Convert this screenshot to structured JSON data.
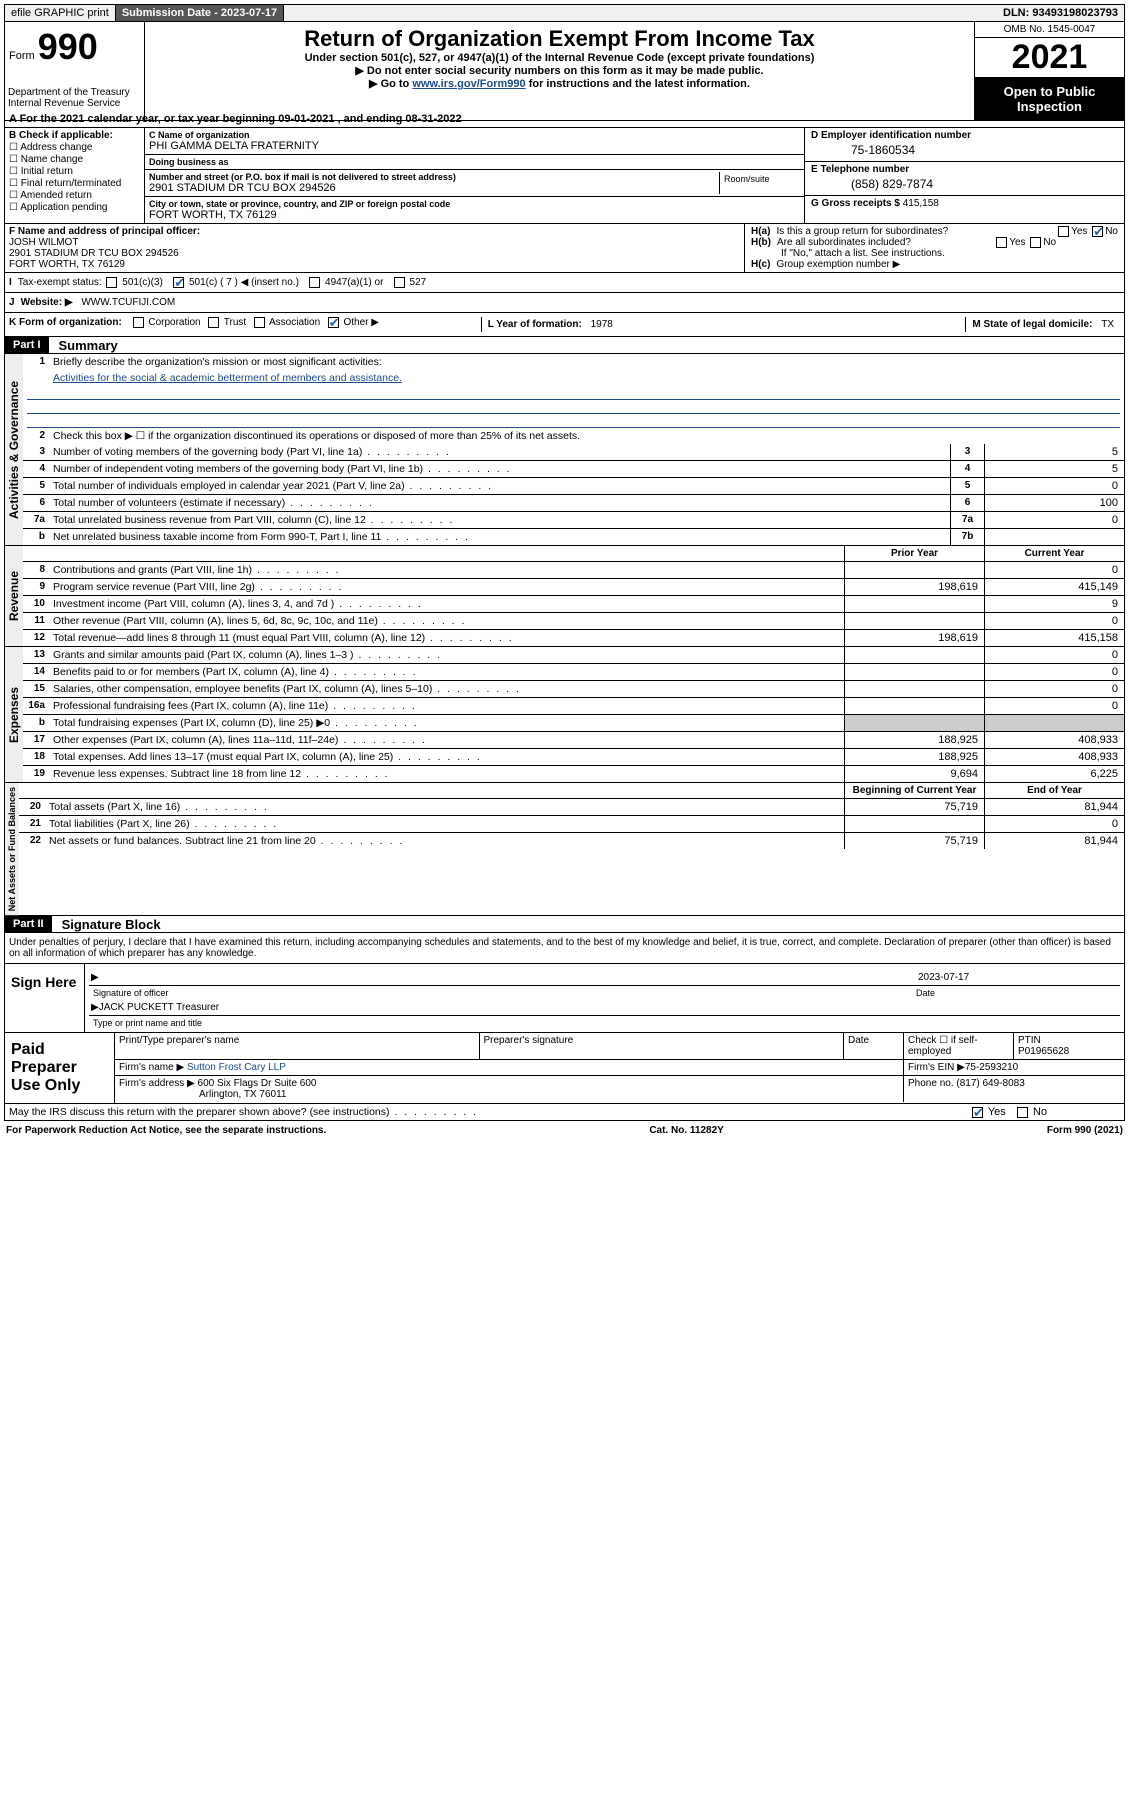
{
  "topbar": {
    "efile": "efile GRAPHIC print",
    "sub_label": "Submission Date - ",
    "sub_date": "2023-07-17",
    "dln_label": "DLN: ",
    "dln": "93493198023793"
  },
  "header": {
    "form_prefix": "Form",
    "form_no": "990",
    "dept": "Department of the Treasury\nInternal Revenue Service",
    "title": "Return of Organization Exempt From Income Tax",
    "sub1": "Under section 501(c), 527, or 4947(a)(1) of the Internal Revenue Code (except private foundations)",
    "sub2": "Do not enter social security numbers on this form as it may be made public.",
    "sub3_pre": "Go to ",
    "sub3_link": "www.irs.gov/Form990",
    "sub3_post": " for instructions and the latest information.",
    "omb": "OMB No. 1545-0047",
    "year": "2021",
    "inspection": "Open to Public Inspection"
  },
  "rowA": {
    "pre": "A For the 2021 calendar year, or tax year beginning ",
    "begin": "09-01-2021",
    "mid": " , and ending ",
    "end": "08-31-2022"
  },
  "colB": {
    "hdr": "B Check if applicable:",
    "items": [
      "Address change",
      "Name change",
      "Initial return",
      "Final return/terminated",
      "Amended return",
      "Application pending"
    ]
  },
  "colC": {
    "name_lbl": "C Name of organization",
    "name": "PHI GAMMA DELTA FRATERNITY",
    "dba_lbl": "Doing business as",
    "dba": "",
    "street_lbl": "Number and street (or P.O. box if mail is not delivered to street address)",
    "street": "2901 STADIUM DR TCU BOX 294526",
    "room_lbl": "Room/suite",
    "city_lbl": "City or town, state or province, country, and ZIP or foreign postal code",
    "city": "FORT WORTH, TX  76129"
  },
  "colD": {
    "ein_lbl": "D Employer identification number",
    "ein": "75-1860534",
    "tel_lbl": "E Telephone number",
    "tel": "(858) 829-7874",
    "gross_lbl": "G Gross receipts $ ",
    "gross": "415,158"
  },
  "colF": {
    "lbl": "F Name and address of principal officer:",
    "name": "JOSH WILMOT",
    "addr1": "2901 STADIUM DR TCU BOX 294526",
    "addr2": "FORT WORTH, TX  76129"
  },
  "colH": {
    "ha": "Is this a group return for subordinates?",
    "hb": "Are all subordinates included?",
    "hb_note": "If \"No,\" attach a list. See instructions.",
    "hc": "Group exemption number ▶",
    "Ha_l": "H(a)",
    "Hb_l": "H(b)",
    "Hc_l": "H(c)"
  },
  "rowI": {
    "lbl": "Tax-exempt status:",
    "opt1": "501(c)(3)",
    "opt2": "501(c) ( 7 ) ◀ (insert no.)",
    "opt3": "4947(a)(1) or",
    "opt4": "527"
  },
  "rowJ": {
    "lbl": "Website: ▶",
    "val": "WWW.TCUFIJI.COM"
  },
  "rowK": {
    "lbl": "K Form of organization:",
    "opts": [
      "Corporation",
      "Trust",
      "Association",
      "Other ▶"
    ],
    "L_lbl": "L Year of formation: ",
    "L_val": "1978",
    "M_lbl": "M State of legal domicile: ",
    "M_val": "TX"
  },
  "partI": {
    "hdr": "Part I",
    "title": "Summary",
    "l1_num": "1",
    "l1": "Briefly describe the organization's mission or most significant activities:",
    "l1_text": "Activities for the social & academic betterment of members and assistance.",
    "l2_num": "2",
    "l2": "Check this box ▶ ☐  if the organization discontinued its operations or disposed of more than 25% of its net assets.",
    "rows_gov": [
      {
        "n": "3",
        "d": "Number of voting members of the governing body (Part VI, line 1a)",
        "bn": "3",
        "v": "5"
      },
      {
        "n": "4",
        "d": "Number of independent voting members of the governing body (Part VI, line 1b)",
        "bn": "4",
        "v": "5"
      },
      {
        "n": "5",
        "d": "Total number of individuals employed in calendar year 2021 (Part V, line 2a)",
        "bn": "5",
        "v": "0"
      },
      {
        "n": "6",
        "d": "Total number of volunteers (estimate if necessary)",
        "bn": "6",
        "v": "100"
      },
      {
        "n": "7a",
        "d": "Total unrelated business revenue from Part VIII, column (C), line 12",
        "bn": "7a",
        "v": "0"
      },
      {
        "n": "b",
        "d": "Net unrelated business taxable income from Form 990-T, Part I, line 11",
        "bn": "7b",
        "v": ""
      }
    ],
    "col_py": "Prior Year",
    "col_cy": "Current Year",
    "rows_rev": [
      {
        "n": "8",
        "d": "Contributions and grants (Part VIII, line 1h)",
        "py": "",
        "cy": "0"
      },
      {
        "n": "9",
        "d": "Program service revenue (Part VIII, line 2g)",
        "py": "198,619",
        "cy": "415,149"
      },
      {
        "n": "10",
        "d": "Investment income (Part VIII, column (A), lines 3, 4, and 7d )",
        "py": "",
        "cy": "9"
      },
      {
        "n": "11",
        "d": "Other revenue (Part VIII, column (A), lines 5, 6d, 8c, 9c, 10c, and 11e)",
        "py": "",
        "cy": "0"
      },
      {
        "n": "12",
        "d": "Total revenue—add lines 8 through 11 (must equal Part VIII, column (A), line 12)",
        "py": "198,619",
        "cy": "415,158"
      }
    ],
    "rows_exp": [
      {
        "n": "13",
        "d": "Grants and similar amounts paid (Part IX, column (A), lines 1–3 )",
        "py": "",
        "cy": "0"
      },
      {
        "n": "14",
        "d": "Benefits paid to or for members (Part IX, column (A), line 4)",
        "py": "",
        "cy": "0"
      },
      {
        "n": "15",
        "d": "Salaries, other compensation, employee benefits (Part IX, column (A), lines 5–10)",
        "py": "",
        "cy": "0"
      },
      {
        "n": "16a",
        "d": "Professional fundraising fees (Part IX, column (A), line 11e)",
        "py": "",
        "cy": "0"
      },
      {
        "n": "b",
        "d": "Total fundraising expenses (Part IX, column (D), line 25) ▶0",
        "py": "GREY",
        "cy": "GREY"
      },
      {
        "n": "17",
        "d": "Other expenses (Part IX, column (A), lines 11a–11d, 11f–24e)",
        "py": "188,925",
        "cy": "408,933"
      },
      {
        "n": "18",
        "d": "Total expenses. Add lines 13–17 (must equal Part IX, column (A), line 25)",
        "py": "188,925",
        "cy": "408,933"
      },
      {
        "n": "19",
        "d": "Revenue less expenses. Subtract line 18 from line 12",
        "py": "9,694",
        "cy": "6,225"
      }
    ],
    "col_bcy": "Beginning of Current Year",
    "col_eoy": "End of Year",
    "rows_na": [
      {
        "n": "20",
        "d": "Total assets (Part X, line 16)",
        "py": "75,719",
        "cy": "81,944"
      },
      {
        "n": "21",
        "d": "Total liabilities (Part X, line 26)",
        "py": "",
        "cy": "0"
      },
      {
        "n": "22",
        "d": "Net assets or fund balances. Subtract line 21 from line 20",
        "py": "75,719",
        "cy": "81,944"
      }
    ],
    "tab_gov": "Activities & Governance",
    "tab_rev": "Revenue",
    "tab_exp": "Expenses",
    "tab_na": "Net Assets or Fund Balances"
  },
  "partII": {
    "hdr": "Part II",
    "title": "Signature Block",
    "declare": "Under penalties of perjury, I declare that I have examined this return, including accompanying schedules and statements, and to the best of my knowledge and belief, it is true, correct, and complete. Declaration of preparer (other than officer) is based on all information of which preparer has any knowledge.",
    "sign_here": "Sign Here",
    "sig_of": "Signature of officer",
    "sig_date_lbl": "Date",
    "sig_date": "2023-07-17",
    "sig_name": "JACK PUCKETT Treasurer",
    "sig_name_lbl": "Type or print name and title",
    "paid_lbl": "Paid Preparer Use Only",
    "p_name_lbl": "Print/Type preparer's name",
    "p_sig_lbl": "Preparer's signature",
    "p_date_lbl": "Date",
    "p_check_lbl": "Check ☐ if self-employed",
    "p_ptin_lbl": "PTIN",
    "p_ptin": "P01965628",
    "firm_name_lbl": "Firm's name   ▶",
    "firm_name": "Sutton Frost Cary LLP",
    "firm_ein_lbl": "Firm's EIN ▶",
    "firm_ein": "75-2593210",
    "firm_addr_lbl": "Firm's address ▶",
    "firm_addr1": "600 Six Flags Dr Suite 600",
    "firm_addr2": "Arlington, TX  76011",
    "firm_phone_lbl": "Phone no. ",
    "firm_phone": "(817) 649-8083",
    "may_irs": "May the IRS discuss this return with the preparer shown above? (see instructions)"
  },
  "footer": {
    "pra": "For Paperwork Reduction Act Notice, see the separate instructions.",
    "cat": "Cat. No. 11282Y",
    "form": "Form 990 (2021)"
  },
  "colors": {
    "link": "#1a4b8e",
    "bg_grey": "#cccccc"
  }
}
